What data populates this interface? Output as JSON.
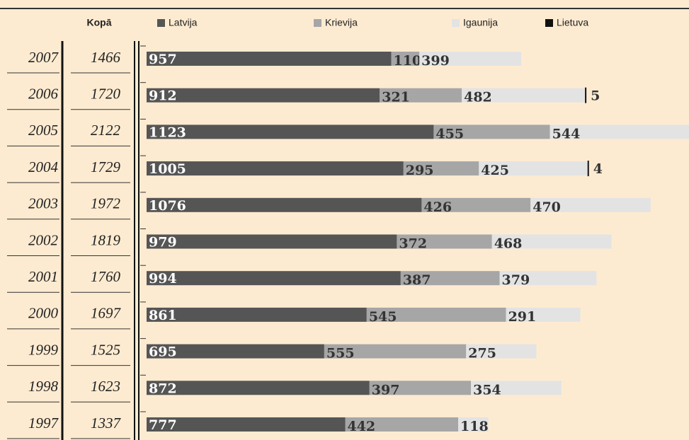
{
  "chart_data": {
    "type": "bar",
    "orientation": "horizontal",
    "stacked": true,
    "total_label": "Kopā",
    "categories": [
      "2007",
      "2006",
      "2005",
      "2004",
      "2003",
      "2002",
      "2001",
      "2000",
      "1999",
      "1998",
      "1997"
    ],
    "totals": [
      1466,
      1720,
      2122,
      1729,
      1972,
      1819,
      1760,
      1697,
      1525,
      1623,
      1337
    ],
    "series": [
      {
        "name": "Latvija",
        "color": "#555555",
        "values": [
          957,
          912,
          1123,
          1005,
          1076,
          979,
          994,
          861,
          695,
          872,
          777
        ]
      },
      {
        "name": "Krievija",
        "color": "#a6a6a6",
        "values": [
          110,
          321,
          455,
          295,
          426,
          372,
          387,
          545,
          555,
          397,
          442
        ]
      },
      {
        "name": "Igaunija",
        "color": "#e3e3e3",
        "values": [
          399,
          482,
          544,
          425,
          470,
          468,
          379,
          291,
          275,
          354,
          118
        ]
      },
      {
        "name": "Lietuva",
        "color": "#111111",
        "values": [
          null,
          5,
          null,
          4,
          null,
          null,
          null,
          null,
          null,
          null,
          null
        ]
      }
    ]
  }
}
